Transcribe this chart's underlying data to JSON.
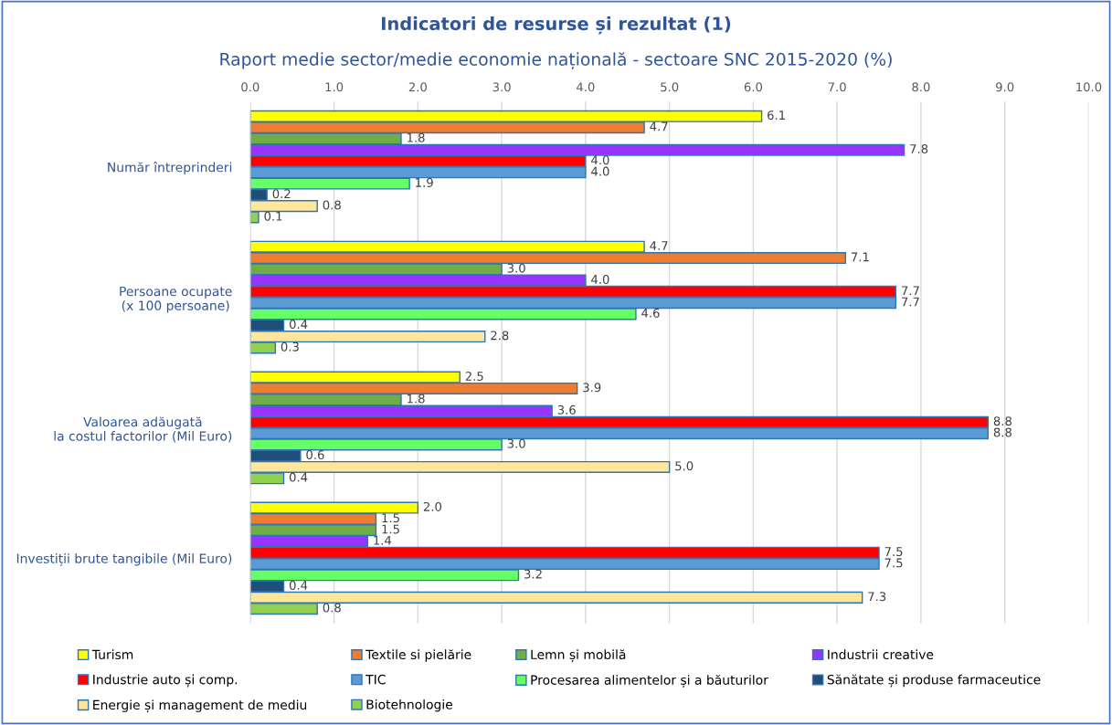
{
  "chart_data": {
    "type": "bar",
    "orientation": "horizontal",
    "title": "Indicatori de resurse și rezultat (1)",
    "subtitle": "Raport medie sector/medie economie națională - sectoare SNC 2015-2020 (%)",
    "categories": [
      "Număr întreprinderi",
      "Persoane ocupate\n(x 100 persoane)",
      "Valoarea adăugată\nla costul factorilor (Mil Euro)",
      "Investiții brute tangibile (Mil Euro)"
    ],
    "series": [
      {
        "name": "Turism",
        "color": "#ffff00",
        "values": [
          6.1,
          4.7,
          2.5,
          2.0
        ],
        "value_labels": [
          "6.1",
          "4.7",
          "2.5",
          "2.0"
        ]
      },
      {
        "name": "Textile si pielărie",
        "color": "#ed7d31",
        "values": [
          4.7,
          7.1,
          3.9,
          1.5
        ],
        "value_labels": [
          "4.7",
          "7.1",
          "3.9",
          "1.5"
        ]
      },
      {
        "name": "Lemn și mobilă",
        "color": "#70ad47",
        "values": [
          1.8,
          3.0,
          1.8,
          1.5
        ],
        "value_labels": [
          "1.8",
          "3.0",
          "1.8",
          "1.5"
        ]
      },
      {
        "name": "Industrii creative",
        "color": "#9933ff",
        "values": [
          7.8,
          4.0,
          3.6,
          1.4
        ],
        "value_labels": [
          "7.8",
          "4.0",
          "3.6",
          "1.4"
        ]
      },
      {
        "name": "Industrie auto și comp.",
        "color": "#ff0000",
        "values": [
          4.0,
          7.7,
          8.8,
          7.5
        ],
        "value_labels": [
          "4.0",
          "7.7",
          "8.8",
          "7.5"
        ]
      },
      {
        "name": "TIC",
        "color": "#5b9bd5",
        "values": [
          4.0,
          7.7,
          8.8,
          7.5
        ],
        "value_labels": [
          "4.0",
          "7.7",
          "8.8",
          "7.5"
        ]
      },
      {
        "name": "Procesarea alimentelor și a băuturilor",
        "color": "#66ff66",
        "values": [
          1.9,
          4.6,
          3.0,
          3.2
        ],
        "value_labels": [
          "1.9",
          "4.6",
          "3.0",
          "3.2"
        ]
      },
      {
        "name": "Sănătate și produse farmaceutice",
        "color": "#1f4e79",
        "values": [
          0.2,
          0.4,
          0.6,
          0.4
        ],
        "value_labels": [
          "0.2",
          "0.4",
          "0.6",
          "0.4"
        ]
      },
      {
        "name": "Energie și management de mediu",
        "color": "#ffe699",
        "values": [
          0.8,
          2.8,
          5.0,
          7.3
        ],
        "value_labels": [
          "0.8",
          "2.8",
          "5.0",
          "7.3"
        ]
      },
      {
        "name": "Biotehnologie",
        "color": "#92d050",
        "values": [
          0.1,
          0.3,
          0.4,
          0.8
        ],
        "value_labels": [
          "0.1",
          "0.3",
          "0.4",
          "0.8"
        ]
      }
    ],
    "xlim": [
      0,
      10
    ],
    "xticks": [
      {
        "value": 0,
        "label": "0.0"
      },
      {
        "value": 1,
        "label": "1.0"
      },
      {
        "value": 2,
        "label": "2.0"
      },
      {
        "value": 3,
        "label": "3.0"
      },
      {
        "value": 4,
        "label": "4.0"
      },
      {
        "value": 5,
        "label": "5.0"
      },
      {
        "value": 6,
        "label": "6.0"
      },
      {
        "value": 7,
        "label": "7.0"
      },
      {
        "value": 8,
        "label": "8.0"
      },
      {
        "value": 9,
        "label": "9.0"
      },
      {
        "value": 10,
        "label": "10.0"
      }
    ],
    "grid": "x",
    "legend": "bottom"
  }
}
